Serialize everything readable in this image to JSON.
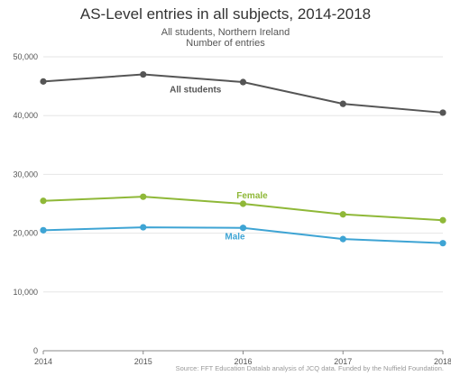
{
  "chart_data": {
    "type": "line",
    "title": "AS-Level entries in all subjects, 2014-2018",
    "subtitle_lines": [
      "All students, Northern Ireland",
      "Number of entries"
    ],
    "xlabel": "",
    "ylabel": "",
    "x": [
      "2014",
      "2015",
      "2016",
      "2017",
      "2018"
    ],
    "ylim": [
      0,
      50000
    ],
    "yticks": [
      0,
      10000,
      20000,
      30000,
      40000,
      50000
    ],
    "ytick_labels": [
      "0",
      "10,000",
      "20,000",
      "30,000",
      "40,000",
      "50,000"
    ],
    "grid": true,
    "series": [
      {
        "name": "All students",
        "color": "#555555",
        "values": [
          45800,
          47000,
          45700,
          42000,
          40500
        ]
      },
      {
        "name": "Female",
        "color": "#8fb838",
        "values": [
          25500,
          26200,
          25000,
          23200,
          22200
        ]
      },
      {
        "name": "Male",
        "color": "#3ea4d4",
        "values": [
          20500,
          21000,
          20900,
          19000,
          18300
        ]
      }
    ],
    "source": "Source: FFT Education Datalab analysis of JCQ data. Funded by the Nuffield Foundation."
  }
}
